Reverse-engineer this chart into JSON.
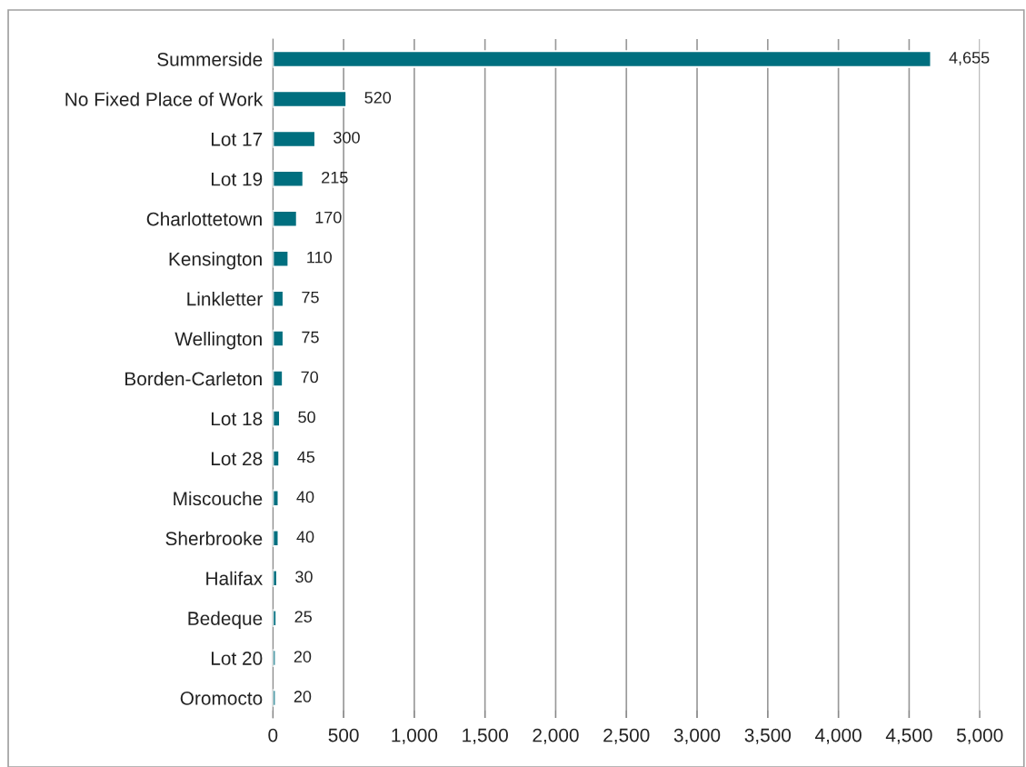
{
  "chart_data": {
    "type": "bar",
    "orientation": "horizontal",
    "categories": [
      "Summerside",
      "No Fixed Place of Work",
      "Lot 17",
      "Lot 19",
      "Charlottetown",
      "Kensington",
      "Linkletter",
      "Wellington",
      "Borden-Carleton",
      "Lot 18",
      "Lot 28",
      "Miscouche",
      "Sherbrooke",
      "Halifax",
      "Bedeque",
      "Lot 20",
      "Oromocto"
    ],
    "values": [
      4655,
      520,
      300,
      215,
      170,
      110,
      75,
      75,
      70,
      50,
      45,
      40,
      40,
      30,
      25,
      20,
      20
    ],
    "value_labels": [
      "4,655",
      "520",
      "300",
      "215",
      "170",
      "110",
      "75",
      "75",
      "70",
      "50",
      "45",
      "40",
      "40",
      "30",
      "25",
      "20",
      "20"
    ],
    "color": "#006f7f",
    "xlim": [
      0,
      5000
    ],
    "xticks": [
      0,
      500,
      {
        "value": 1000,
        "label": "1,000"
      },
      {
        "value": 1500,
        "label": "1,500"
      },
      {
        "value": 2000,
        "label": "2,000"
      },
      {
        "value": 2500,
        "label": "2,500"
      },
      {
        "value": 3000,
        "label": "3,000"
      },
      {
        "value": 3500,
        "label": "3,500"
      },
      {
        "value": 4000,
        "label": "4,000"
      },
      {
        "value": 4500,
        "label": "4,500"
      },
      {
        "value": 5000,
        "label": "5,000"
      }
    ],
    "grid": "x"
  }
}
